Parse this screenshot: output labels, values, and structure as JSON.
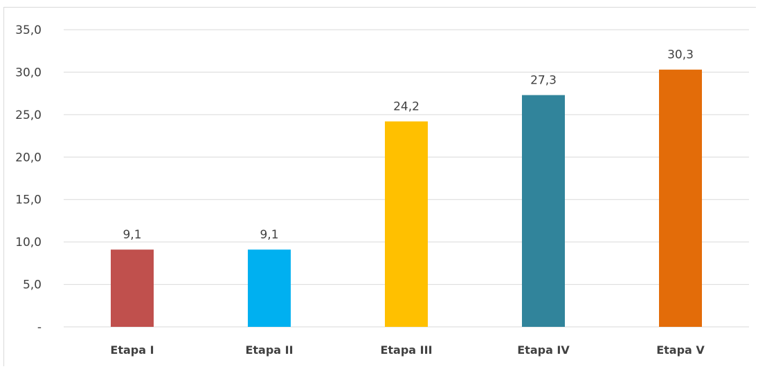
{
  "chart_data": {
    "type": "bar",
    "categories": [
      "Etapa I",
      "Etapa II",
      "Etapa III",
      "Etapa IV",
      "Etapa V"
    ],
    "values": [
      9.1,
      9.1,
      24.2,
      27.3,
      30.3
    ],
    "data_labels": [
      "9,1",
      "9,1",
      "24,2",
      "27,3",
      "30,3"
    ],
    "colors": [
      "#c0504d",
      "#00b0f0",
      "#ffc000",
      "#31849b",
      "#e36c09"
    ],
    "ylim": [
      0,
      35
    ],
    "y_ticks": [
      0,
      5,
      10,
      15,
      20,
      25,
      30,
      35
    ],
    "y_tick_labels": [
      "-",
      "5,0",
      "10,0",
      "15,0",
      "20,0",
      "25,0",
      "30,0",
      "35,0"
    ],
    "grid": true,
    "gridline_color": "#d9d9d9",
    "title": "",
    "xlabel": "",
    "ylabel": ""
  }
}
